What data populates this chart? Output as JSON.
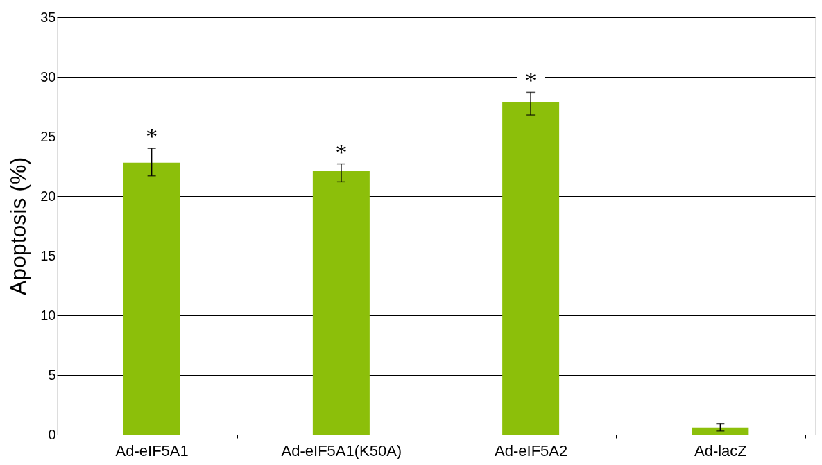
{
  "chart_data": {
    "type": "bar",
    "ylabel": "Apoptosis (%)",
    "categories": [
      "Ad-eIF5A1",
      "Ad-eIF5A1(K50A)",
      "Ad-eIF5A2",
      "Ad-lacZ"
    ],
    "values": [
      22.8,
      22.1,
      27.9,
      0.6
    ],
    "errors": [
      [
        21.7,
        24.0
      ],
      [
        21.2,
        22.7
      ],
      [
        26.8,
        28.7
      ],
      [
        0.3,
        0.9
      ]
    ],
    "color": "#8cbf0a",
    "ylim": [
      0,
      35
    ],
    "yticks": [
      0,
      5,
      10,
      15,
      20,
      25,
      30,
      35
    ],
    "grid": "y",
    "annotations": [
      {
        "text": "*",
        "x": "Ad-eIF5A1",
        "y": 24.0
      },
      {
        "text": "*",
        "x": "Ad-eIF5A1(K50A)",
        "y": 22.7
      },
      {
        "text": "*",
        "x": "Ad-eIF5A2",
        "y": 28.7
      }
    ]
  }
}
